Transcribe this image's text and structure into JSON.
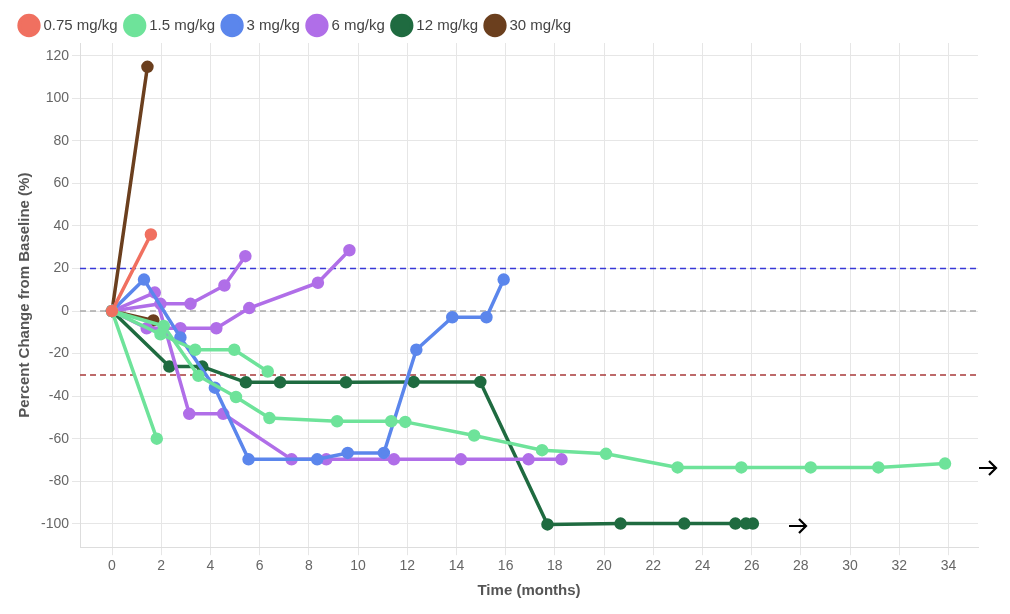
{
  "chart_data": {
    "type": "line",
    "xlabel": "Time (months)",
    "ylabel": "Percent Change from Baseline (%)",
    "xlim": [
      -1.3,
      35.2
    ],
    "xticks": [
      0,
      2,
      4,
      6,
      8,
      10,
      12,
      14,
      16,
      18,
      20,
      22,
      24,
      26,
      28,
      30,
      32,
      34
    ],
    "ylim": [
      -111,
      126
    ],
    "yticks": [
      -100,
      -80,
      -60,
      -40,
      -20,
      0,
      20,
      40,
      60,
      80,
      100,
      120
    ],
    "grid": true,
    "legend": "top left",
    "marker": "circle",
    "line_style": "solid",
    "ref_lines": [
      {
        "axis": "y",
        "value": 20,
        "color": "#3838d8",
        "line_style": "dashed"
      },
      {
        "axis": "y",
        "value": 0,
        "color": "#aaaaaa",
        "line_style": "dashed"
      },
      {
        "axis": "y",
        "value": -30,
        "color": "#a83a3a",
        "line_style": "dashed"
      }
    ],
    "series": [
      {
        "name": "0.75 mg/kg",
        "color": "#f07060",
        "x": [
          0,
          1.58
        ],
        "values": [
          0,
          36
        ]
      },
      {
        "name": "1.5 mg/kg",
        "color": "#6ee39a",
        "x": [
          0,
          1.82
        ],
        "values": [
          0,
          -60
        ]
      },
      {
        "color": "#6ee39a",
        "x": [
          0,
          1.97,
          3.38,
          4.97,
          6.33
        ],
        "values": [
          0,
          -10.9,
          -18.2,
          -18.2,
          -28.4
        ]
      },
      {
        "color": "#6ee39a",
        "x": [
          0,
          2.1,
          3.51,
          5.04,
          6.4,
          9.15,
          11.35,
          11.92,
          14.72,
          17.48,
          20.08,
          22.99,
          25.58,
          28.4,
          31.15,
          33.86
        ],
        "values": [
          0,
          -7,
          -30.4,
          -40.4,
          -50.3,
          -51.8,
          -51.8,
          -52.1,
          -58.5,
          -65.4,
          -67.1,
          -73.5,
          -73.5,
          -73.5,
          -73.5,
          -71.7
        ]
      },
      {
        "name": "3 mg/kg",
        "color": "#5b86ec",
        "x": [
          0,
          1.3,
          2.78,
          4.18,
          5.55,
          8.34,
          9.58,
          11.05,
          12.37,
          13.83,
          15.22,
          15.92
        ],
        "values": [
          0,
          14.8,
          -12.4,
          -36,
          -69.7,
          -69.7,
          -66.7,
          -66.7,
          -18.2,
          -2.9,
          -2.9,
          14.8
        ]
      },
      {
        "name": "6 mg/kg",
        "color": "#b06ee8",
        "x": [
          0,
          1.74,
          3.14,
          4.52,
          7.3,
          8.71,
          11.46,
          14.18,
          16.93,
          18.27
        ],
        "values": [
          0,
          8.7,
          -48.3,
          -48.3,
          -69.7,
          -69.7,
          -69.7,
          -69.7,
          -69.7,
          -69.7
        ]
      },
      {
        "color": "#b06ee8",
        "x": [
          0,
          1.97,
          3.19,
          4.57,
          5.42
        ],
        "values": [
          0,
          3.4,
          3.4,
          12,
          25.8
        ]
      },
      {
        "color": "#b06ee8",
        "x": [
          0,
          1.41,
          2.78,
          4.24,
          5.58,
          8.37,
          9.65
        ],
        "values": [
          0,
          -8.1,
          -8.1,
          -8.1,
          1.4,
          13.3,
          28.6
        ]
      },
      {
        "name": "12 mg/kg",
        "color": "#1f6b40",
        "x": [
          0,
          2.33,
          3.67,
          5.44,
          6.83,
          9.51,
          12.26,
          14.97,
          17.7,
          20.67,
          23.26,
          25.34,
          25.77,
          26.05
        ],
        "values": [
          0,
          -26.1,
          -26.1,
          -33.5,
          -33.5,
          -33.5,
          -33.3,
          -33.3,
          -100.3,
          -99.9,
          -99.9,
          -99.9,
          -99.9,
          -99.9
        ]
      },
      {
        "name": "30 mg/kg",
        "color": "#6b3f1e",
        "x": [
          0,
          1.44
        ],
        "values": [
          0,
          114.8
        ]
      },
      {
        "color": "#6b3f1e",
        "x": [
          0,
          1.68
        ],
        "values": [
          0,
          -4.4
        ]
      }
    ]
  }
}
